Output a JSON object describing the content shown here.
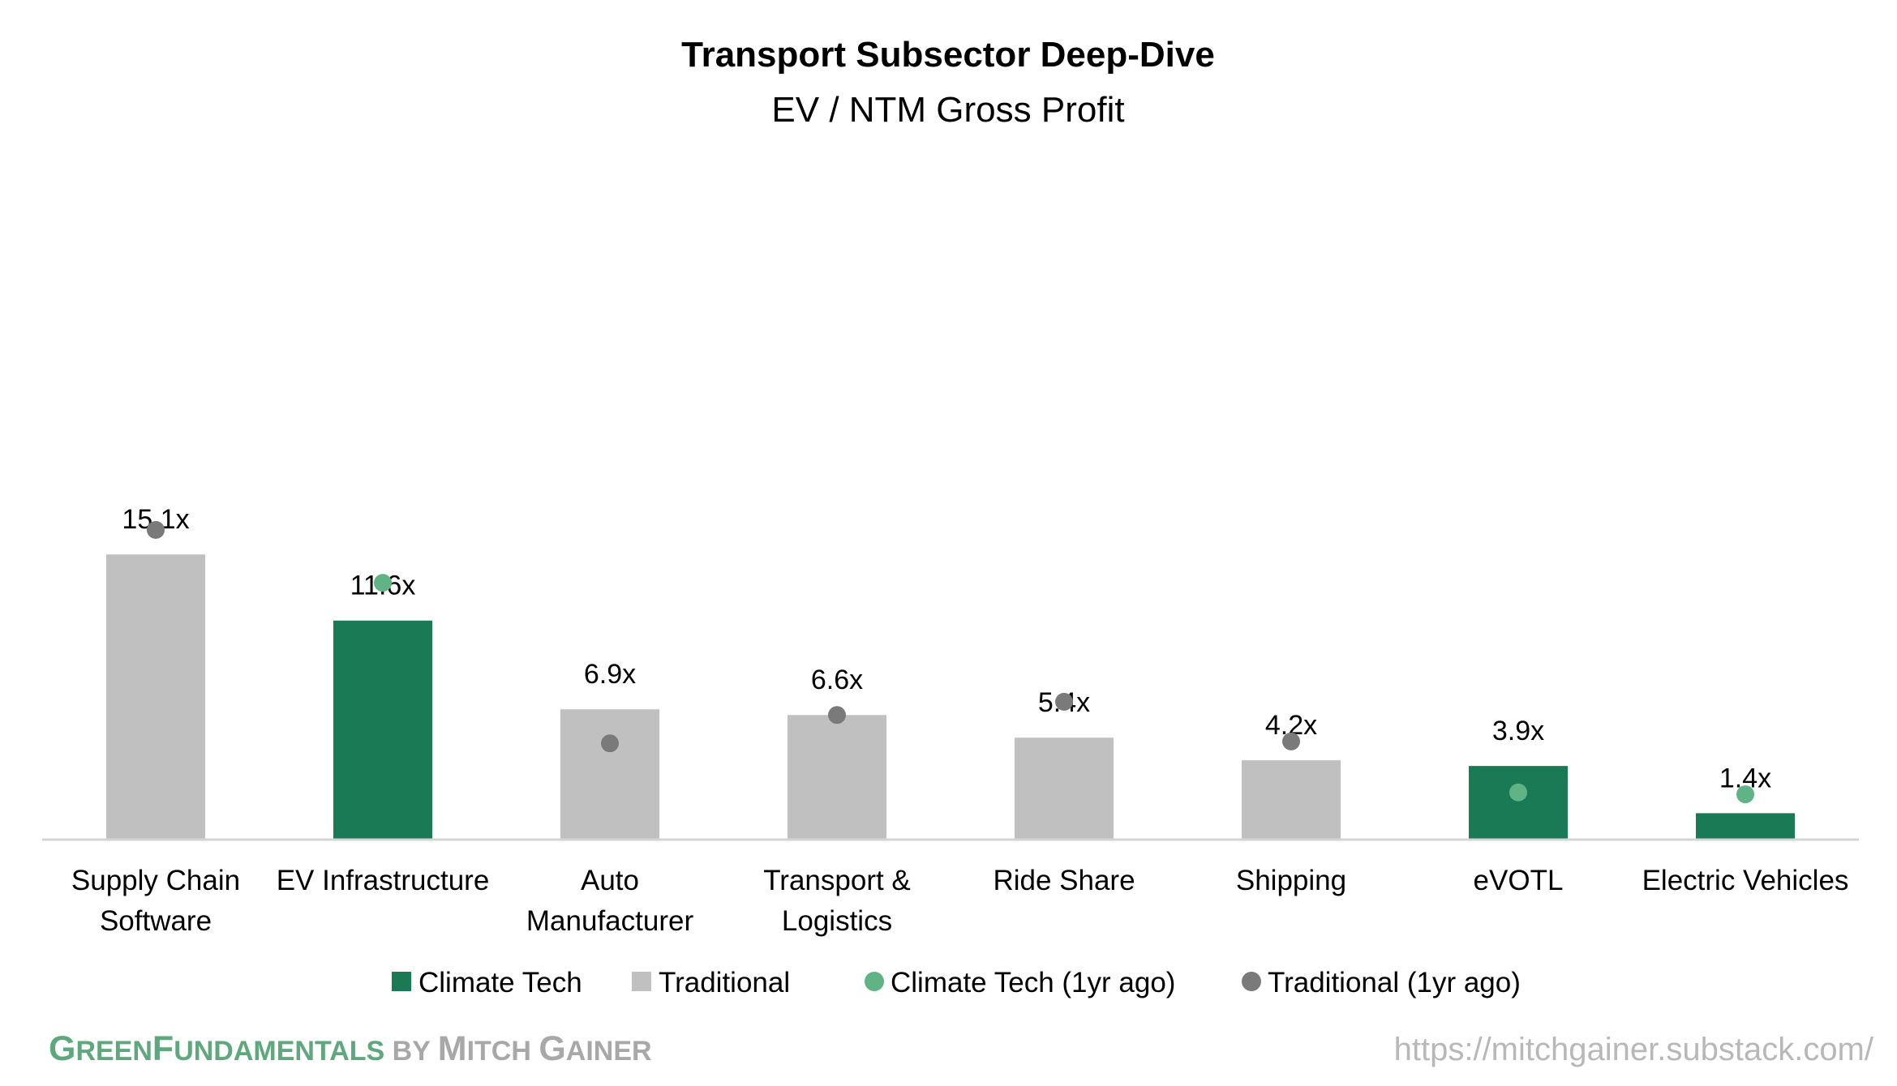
{
  "chart_data": {
    "type": "bar",
    "title": "Transport Subsector Deep-Dive",
    "subtitle": "EV / NTM Gross Profit",
    "categories": [
      [
        "Supply Chain",
        "Software"
      ],
      [
        "EV Infrastructure"
      ],
      [
        "Auto",
        "Manufacturer"
      ],
      [
        "Transport &",
        "Logistics"
      ],
      [
        "Ride Share"
      ],
      [
        "Shipping"
      ],
      [
        "eVOTL"
      ],
      [
        "Electric Vehicles"
      ]
    ],
    "values": [
      15.1,
      11.6,
      6.9,
      6.6,
      5.4,
      4.2,
      3.9,
      1.4
    ],
    "value_labels": [
      "15.1x",
      "11.6x",
      "6.9x",
      "6.6x",
      "5.4x",
      "4.2x",
      "3.9x",
      "1.4x"
    ],
    "groups": [
      "Traditional",
      "Climate Tech",
      "Traditional",
      "Traditional",
      "Traditional",
      "Traditional",
      "Climate Tech",
      "Climate Tech"
    ],
    "one_year_ago": [
      16.4,
      13.6,
      5.1,
      6.6,
      7.3,
      5.2,
      2.5,
      2.4
    ],
    "ylim": [
      0,
      20
    ],
    "grid": false,
    "legend_position": "bottom",
    "legend": [
      {
        "label": "Climate Tech",
        "shape": "square",
        "color": "#1a7a55"
      },
      {
        "label": "Traditional",
        "shape": "square",
        "color": "#c0c0c0"
      },
      {
        "label": "Climate Tech (1yr ago)",
        "shape": "circle",
        "color": "#5fb384"
      },
      {
        "label": "Traditional (1yr ago)",
        "shape": "circle",
        "color": "#7a7a7a"
      }
    ],
    "colors": {
      "Climate Tech": "#1a7a55",
      "Traditional": "#c0c0c0",
      "Climate Tech (1yr ago)": "#5fb384",
      "Traditional (1yr ago)": "#7a7a7a",
      "axis": "#d4d4d4"
    }
  },
  "footer": {
    "brand_part1_cap": "G",
    "brand_part1_rest": "REEN",
    "brand_part2_cap": "F",
    "brand_part2_rest": "UNDAMENTALS",
    "brand_by": " BY ",
    "brand_part3_cap": "M",
    "brand_part3_rest": "ITCH ",
    "brand_part4_cap": "G",
    "brand_part4_rest": "AINER",
    "url": "https://mitchgainer.substack.com/"
  }
}
